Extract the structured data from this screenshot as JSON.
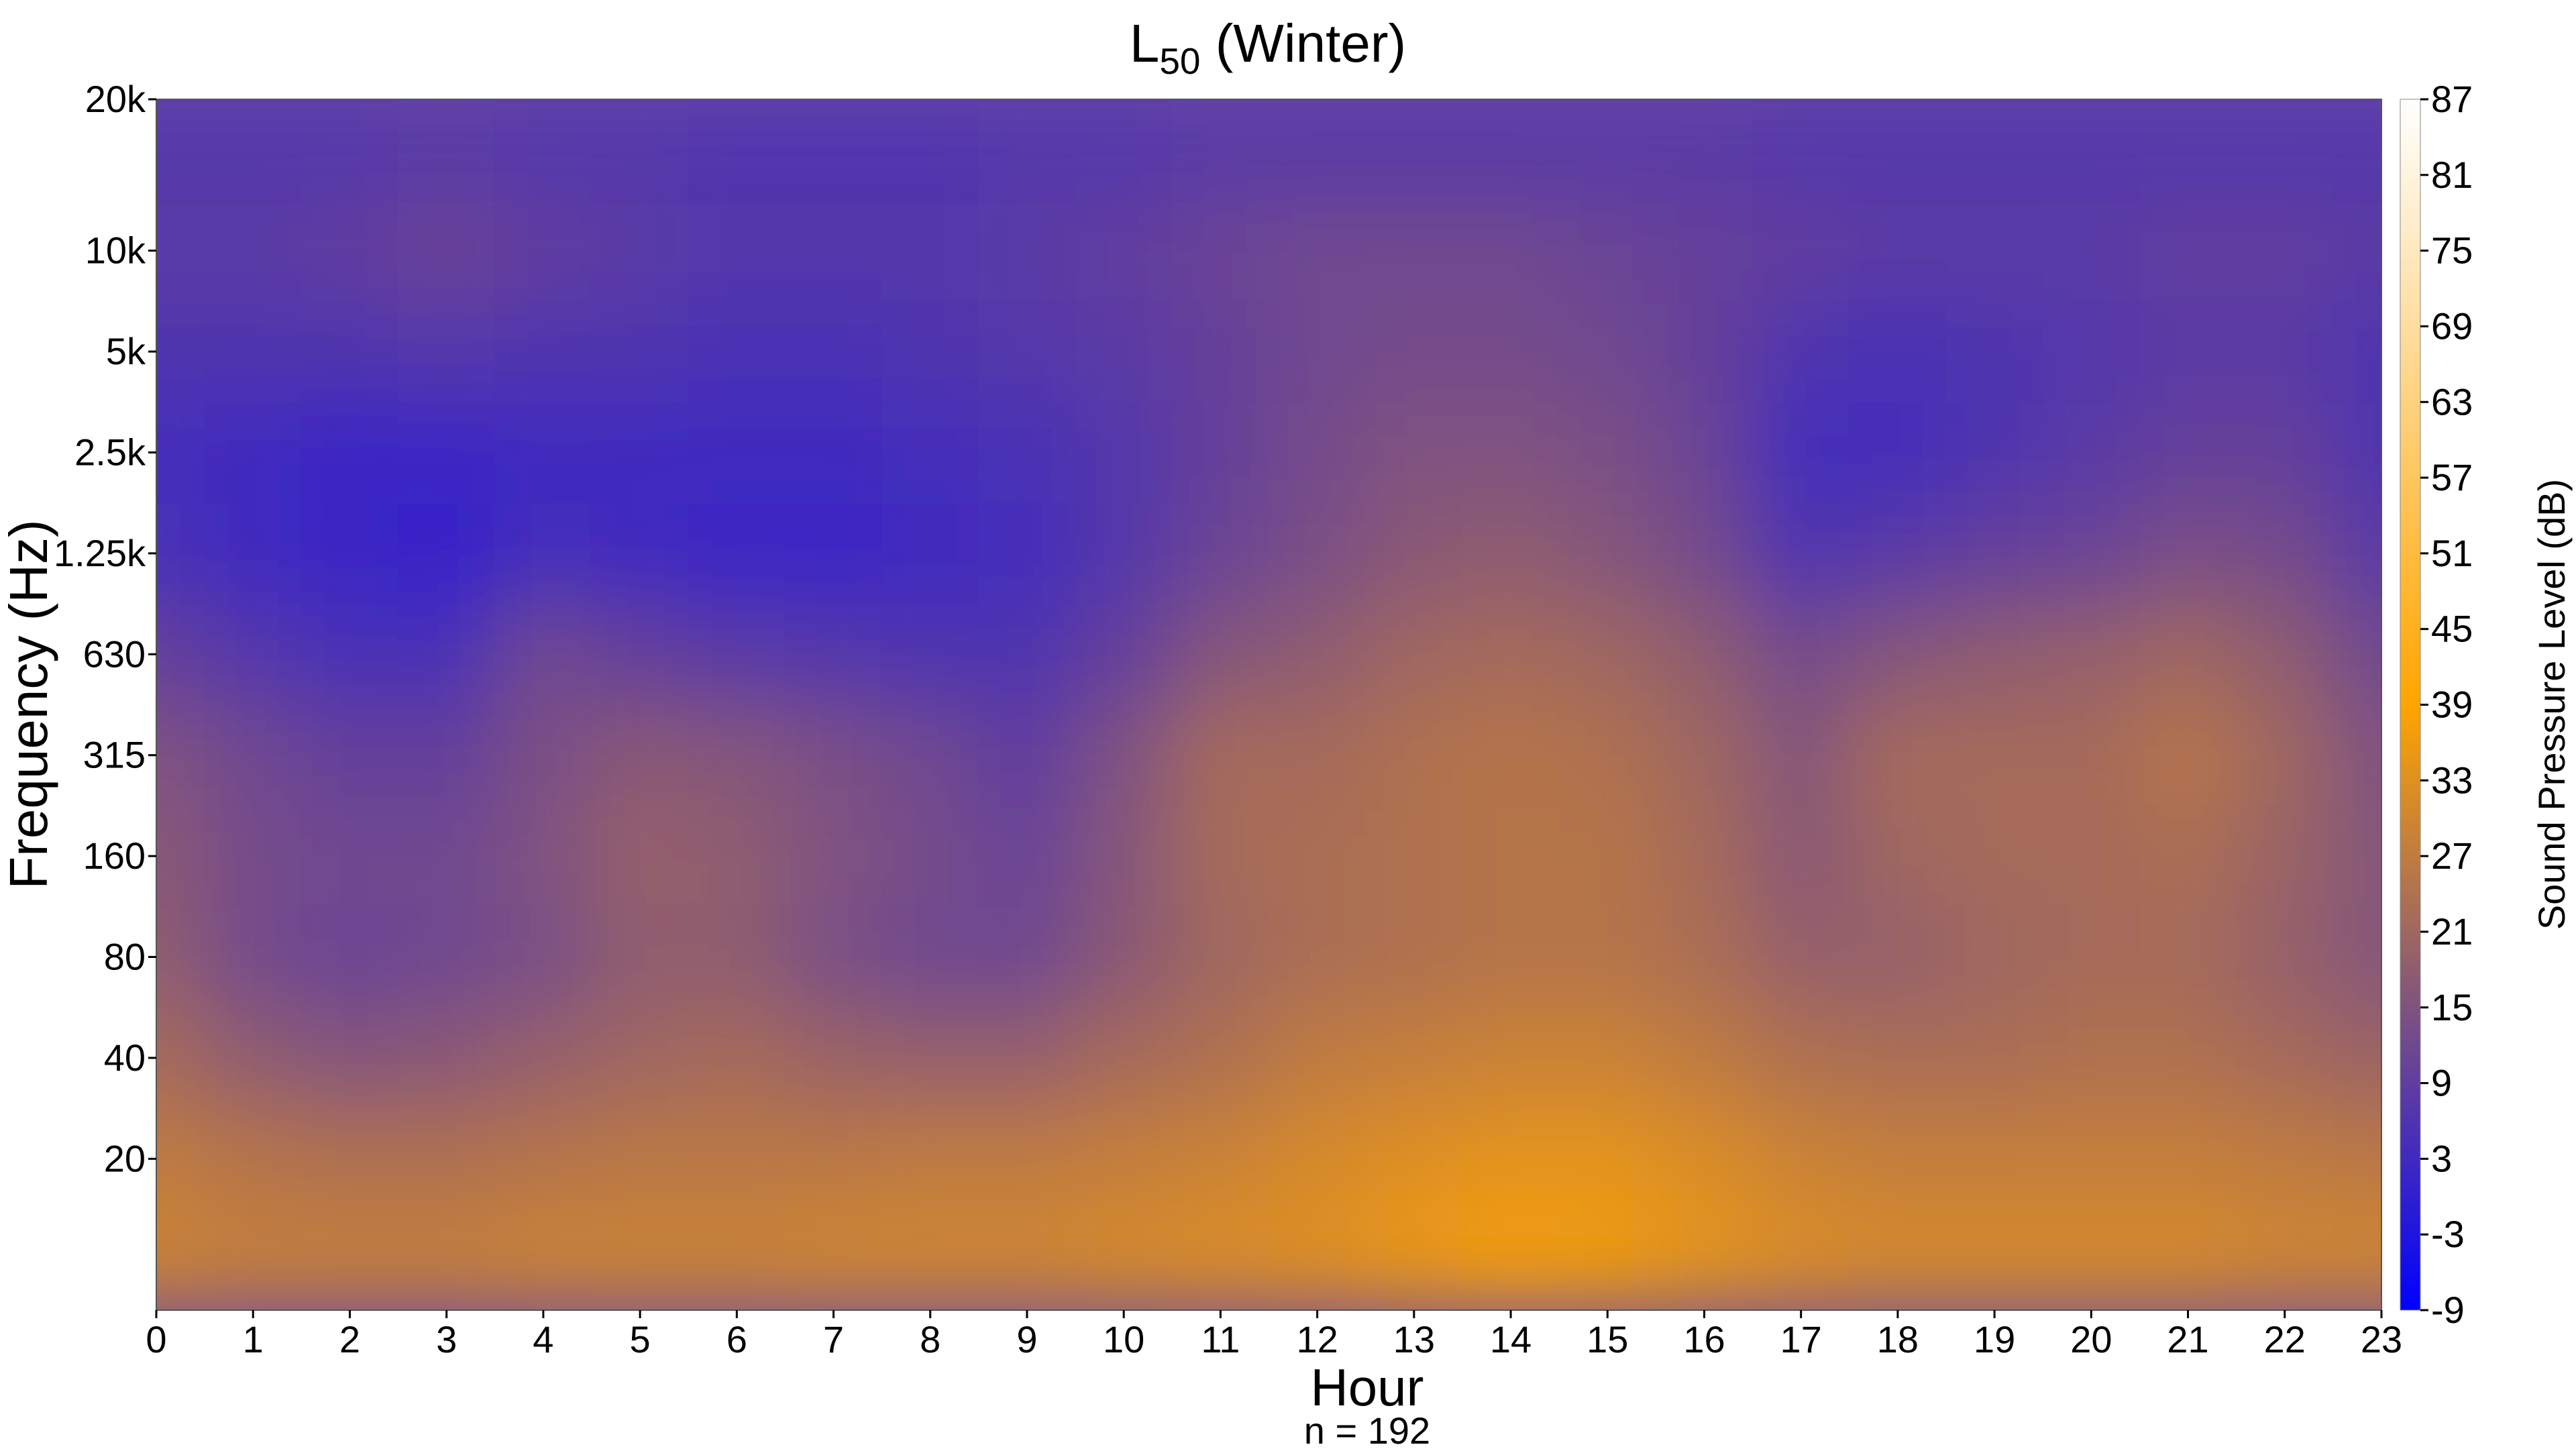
{
  "chart_data": {
    "type": "heatmap",
    "title": "L",
    "title_subscript": "50",
    "title_suffix": " (Winter)",
    "xlabel": "Hour",
    "ylabel": "Frequency (Hz)",
    "note": "n = 192",
    "colorbar_label": "Sound Pressure Level (dB)",
    "x_ticks": [
      "0",
      "1",
      "2",
      "3",
      "4",
      "5",
      "6",
      "7",
      "8",
      "9",
      "10",
      "11",
      "12",
      "13",
      "14",
      "15",
      "16",
      "17",
      "18",
      "19",
      "20",
      "21",
      "22",
      "23"
    ],
    "y_ticks": [
      "20",
      "40",
      "80",
      "160",
      "315",
      "630",
      "1.25k",
      "2.5k",
      "5k",
      "10k",
      "20k"
    ],
    "colorbar_ticks": [
      "-9",
      "-3",
      "3",
      "9",
      "15",
      "21",
      "27",
      "33",
      "39",
      "45",
      "51",
      "57",
      "63",
      "69",
      "75",
      "81",
      "87"
    ],
    "xlim": [
      0,
      23
    ],
    "zlim": [
      -9,
      87
    ],
    "colorscale": [
      "#0000ff",
      "#ffa500",
      "#ffffff"
    ],
    "y_rows_bottom_to_top": [
      "12.5",
      "20",
      "40",
      "80",
      "160",
      "315",
      "630",
      "1.25k",
      "2.5k",
      "5k",
      "10k",
      "20k"
    ],
    "values_rows_bottom_to_top": [
      [
        29,
        28,
        28,
        28,
        29,
        29,
        29,
        30,
        30,
        30,
        31,
        32,
        33,
        35,
        37,
        36,
        34,
        32,
        31,
        31,
        31,
        31,
        30,
        30
      ],
      [
        27,
        25,
        24,
        24,
        25,
        26,
        26,
        26,
        27,
        27,
        28,
        29,
        31,
        33,
        34,
        34,
        32,
        29,
        28,
        28,
        28,
        28,
        27,
        26
      ],
      [
        22,
        18,
        16,
        17,
        19,
        21,
        22,
        20,
        19,
        19,
        22,
        24,
        27,
        28,
        29,
        29,
        27,
        24,
        23,
        23,
        24,
        24,
        22,
        20
      ],
      [
        18,
        13,
        11,
        12,
        14,
        18,
        18,
        14,
        12,
        12,
        17,
        21,
        23,
        24,
        25,
        25,
        23,
        19,
        19,
        21,
        22,
        22,
        19,
        16
      ],
      [
        17,
        13,
        12,
        12,
        15,
        19,
        18,
        15,
        13,
        11,
        16,
        22,
        23,
        24,
        25,
        25,
        22,
        17,
        21,
        22,
        22,
        23,
        20,
        16
      ],
      [
        15,
        12,
        10,
        10,
        14,
        17,
        16,
        14,
        12,
        9,
        15,
        22,
        22,
        24,
        25,
        24,
        21,
        16,
        22,
        22,
        22,
        25,
        21,
        15
      ],
      [
        10,
        7,
        5,
        5,
        12,
        10,
        8,
        7,
        6,
        6,
        10,
        16,
        18,
        21,
        22,
        21,
        18,
        13,
        16,
        18,
        19,
        21,
        18,
        12
      ],
      [
        5,
        3,
        2,
        1,
        4,
        3,
        2,
        2,
        3,
        4,
        7,
        11,
        14,
        17,
        18,
        16,
        13,
        6,
        8,
        10,
        11,
        14,
        13,
        8
      ],
      [
        4,
        3,
        2,
        2,
        3,
        3,
        3,
        3,
        4,
        5,
        7,
        10,
        13,
        15,
        15,
        14,
        11,
        4,
        4,
        6,
        8,
        10,
        10,
        6
      ],
      [
        6,
        6,
        6,
        7,
        6,
        6,
        5,
        5,
        6,
        7,
        8,
        10,
        12,
        13,
        13,
        12,
        10,
        6,
        5,
        6,
        7,
        8,
        8,
        6
      ],
      [
        8,
        8,
        9,
        11,
        9,
        8,
        7,
        7,
        7,
        8,
        9,
        11,
        12,
        12,
        12,
        11,
        10,
        9,
        8,
        8,
        8,
        9,
        9,
        8
      ],
      [
        7,
        7,
        7,
        8,
        7,
        7,
        6,
        6,
        6,
        7,
        7,
        8,
        8,
        8,
        8,
        8,
        8,
        7,
        7,
        7,
        7,
        7,
        7,
        7
      ]
    ]
  }
}
